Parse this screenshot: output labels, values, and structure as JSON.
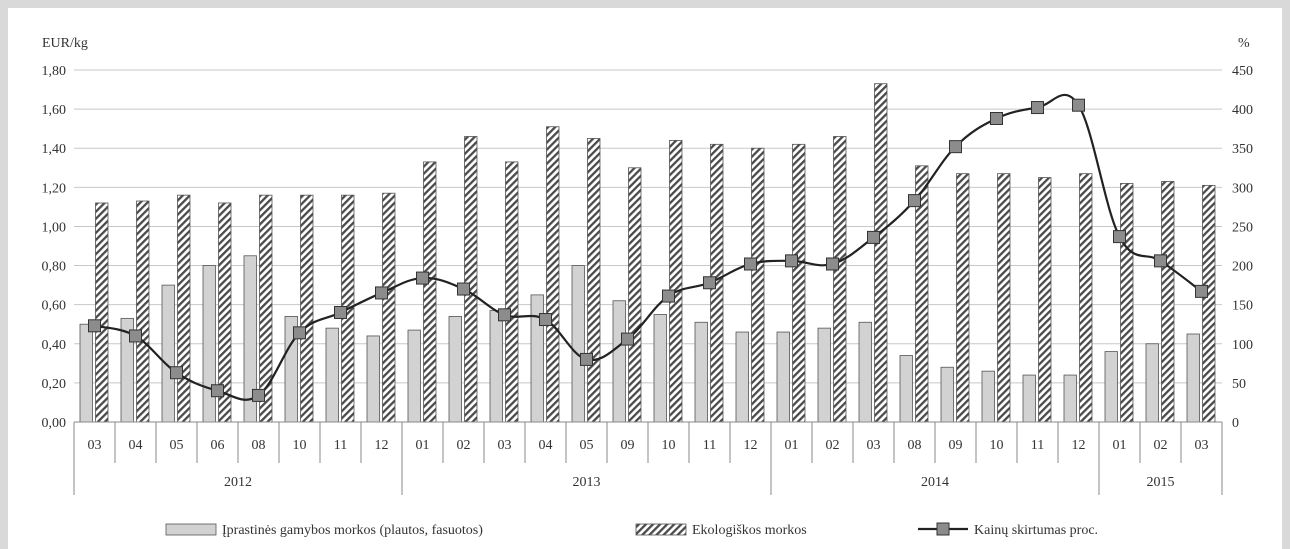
{
  "chart_data": {
    "type": "bar",
    "y_left_label": "EUR/kg",
    "y_right_label": "%",
    "ylim_left": [
      0,
      1.8
    ],
    "ylim_right": [
      0,
      450
    ],
    "y_left_ticks": [
      "0,00",
      "0,20",
      "0,40",
      "0,60",
      "0,80",
      "1,00",
      "1,20",
      "1,40",
      "1,60",
      "1,80"
    ],
    "y_right_ticks": [
      "0",
      "50",
      "100",
      "150",
      "200",
      "250",
      "300",
      "350",
      "400",
      "450"
    ],
    "grid": true,
    "legend_position": "bottom",
    "categories": [
      "03",
      "04",
      "05",
      "06",
      "08",
      "10",
      "11",
      "12",
      "01",
      "02",
      "03",
      "04",
      "05",
      "09",
      "10",
      "11",
      "12",
      "01",
      "02",
      "03",
      "08",
      "09",
      "10",
      "11",
      "12",
      "01",
      "02",
      "03"
    ],
    "years": [
      {
        "label": "2012",
        "count": 8
      },
      {
        "label": "2013",
        "count": 9
      },
      {
        "label": "2014",
        "count": 8
      },
      {
        "label": "2015",
        "count": 3
      }
    ],
    "series": [
      {
        "name": "Įprastinės gamybos morkos (plautos, fasuotos)",
        "type": "bar",
        "axis": "left",
        "pattern": "solid-gray",
        "values": [
          0.5,
          0.53,
          0.7,
          0.8,
          0.85,
          0.54,
          0.48,
          0.44,
          0.47,
          0.54,
          0.57,
          0.65,
          0.8,
          0.62,
          0.55,
          0.51,
          0.46,
          0.46,
          0.48,
          0.51,
          0.34,
          0.28,
          0.26,
          0.24,
          0.24,
          0.36,
          0.4,
          0.45
        ]
      },
      {
        "name": "Ekologiškos morkos",
        "type": "bar",
        "axis": "left",
        "pattern": "diagonal-hatch",
        "values": [
          1.12,
          1.13,
          1.16,
          1.12,
          1.16,
          1.16,
          1.16,
          1.17,
          1.33,
          1.46,
          1.33,
          1.51,
          1.45,
          1.3,
          1.44,
          1.42,
          1.4,
          1.42,
          1.46,
          1.73,
          1.31,
          1.27,
          1.27,
          1.25,
          1.27,
          1.22,
          1.23,
          1.21
        ]
      },
      {
        "name": "Kainų skirtumas proc.",
        "type": "line",
        "axis": "right",
        "marker": "square",
        "values": [
          123,
          110,
          63,
          40,
          34,
          114,
          140,
          165,
          184,
          170,
          137,
          131,
          80,
          106,
          161,
          178,
          202,
          206,
          202,
          236,
          283,
          352,
          388,
          402,
          405,
          237,
          206,
          167
        ]
      }
    ]
  }
}
